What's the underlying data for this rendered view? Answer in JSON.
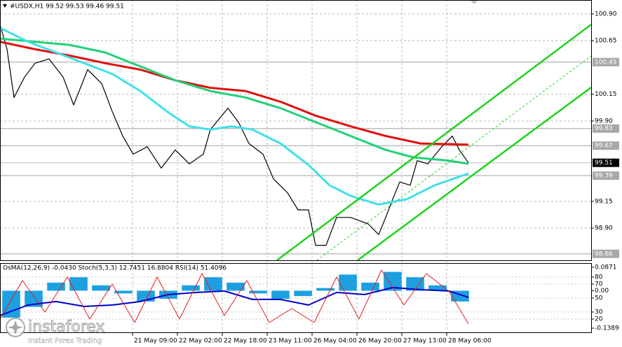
{
  "header": "#USDX,H1  99.52 99.53 99.46 99.51",
  "logo": {
    "name": "instaforex",
    "tagline": "Instant Forex Trading"
  },
  "chart_data": [
    {
      "type": "line",
      "xlim": [
        0,
        210.75
      ],
      "xticks": [
        {
          "value": 47.25,
          "label": "21 May 09:00"
        },
        {
          "value": 63.25,
          "label": "22 May 02:00"
        },
        {
          "value": 79.25,
          "label": "22 May 18:00"
        },
        {
          "value": 95.25,
          "label": "23 May 11:00"
        },
        {
          "value": 111.25,
          "label": "26 May 04:00"
        },
        {
          "value": 127.25,
          "label": "26 May 20:00"
        },
        {
          "value": 143.25,
          "label": "27 May 13:00"
        },
        {
          "value": 159.25,
          "label": "28 May 06:00"
        }
      ],
      "ylim": [
        98.6,
        101.03
      ],
      "yticks": [
        {
          "value": 100.9,
          "label": "100.90"
        },
        100.65,
        100.15,
        {
          "value": 99.9,
          "label": "99.90"
        },
        99.15,
        {
          "value": 98.9,
          "label": "98.90"
        }
      ],
      "levels": [
        100.45,
        99.83,
        99.67,
        99.39,
        98.66
      ],
      "current_price": 99.51,
      "grid": true,
      "series": [
        {
          "color": "#000000",
          "width": 1.2,
          "x": [
            0,
            2.5,
            5,
            8.75,
            12.5,
            17.5,
            22.5,
            26.25,
            31.25,
            36.25,
            40,
            43.75,
            47.5,
            52.5,
            57.5,
            62.5,
            67.5,
            72.5,
            75,
            81.25,
            85,
            88.75,
            93.75,
            97.5,
            102.5,
            106.25,
            110,
            112.5,
            116.25,
            120,
            125,
            131.25,
            135,
            137.5,
            140,
            142.5,
            146.25,
            148.75,
            152.5,
            157.5,
            161.25,
            163.75,
            167
          ],
          "values": [
            100.8,
            100.57,
            100.12,
            100.31,
            100.44,
            100.48,
            100.31,
            100.05,
            100.38,
            100.25,
            99.99,
            99.76,
            99.59,
            99.66,
            99.46,
            99.63,
            99.5,
            99.59,
            99.82,
            100.02,
            99.89,
            99.69,
            99.59,
            99.36,
            99.23,
            99.07,
            99.07,
            98.74,
            98.74,
            99.0,
            99.0,
            98.94,
            98.84,
            99.0,
            99.17,
            99.33,
            99.3,
            99.53,
            99.5,
            99.66,
            99.76,
            99.63,
            99.51
          ]
        },
        {
          "color": "#e01010",
          "width": 3,
          "x": [
            0,
            12.5,
            25,
            37.5,
            50,
            62.5,
            75,
            87.5,
            100,
            112.5,
            125,
            137.5,
            150,
            167
          ],
          "values": [
            100.64,
            100.57,
            100.51,
            100.44,
            100.38,
            100.28,
            100.21,
            100.18,
            100.08,
            99.95,
            99.85,
            99.76,
            99.69,
            99.68
          ]
        },
        {
          "color": "#22d07a",
          "width": 3,
          "x": [
            0,
            12.5,
            25,
            37.5,
            50,
            62.5,
            75,
            87.5,
            100,
            112.5,
            125,
            137.5,
            147.5,
            160,
            167
          ],
          "values": [
            100.67,
            100.64,
            100.61,
            100.54,
            100.41,
            100.28,
            100.18,
            100.12,
            100.02,
            99.89,
            99.76,
            99.63,
            99.56,
            99.53,
            99.5
          ]
        },
        {
          "color": "#40e0e8",
          "width": 3,
          "x": [
            0,
            10,
            20,
            30,
            40,
            50,
            60,
            67.5,
            75,
            82.5,
            90,
            100,
            110,
            117.5,
            125,
            135,
            145,
            155,
            167
          ],
          "values": [
            100.77,
            100.64,
            100.54,
            100.44,
            100.34,
            100.18,
            99.98,
            99.85,
            99.82,
            99.85,
            99.82,
            99.69,
            99.49,
            99.3,
            99.2,
            99.12,
            99.17,
            99.3,
            99.41
          ]
        }
      ]
    },
    {
      "type": "line",
      "title": "OsMA(12,26,9) -0.0430  Stoch(5,3,3) 12.7451 16.8804  RSI(14) 51.4096",
      "xlim": [
        0,
        210.75
      ],
      "ylim": [
        0,
        100
      ],
      "yticks": [
        80,
        70,
        50,
        30,
        20
      ],
      "y2lim": [
        -0.157,
        0.1027
      ],
      "y2ticks": [
        0.0871,
        {
          "value": 0,
          "label": "0.00"
        },
        -0.1389
      ],
      "series": [
        {
          "kind": "bar",
          "axis": "y2",
          "color": "#1ea0e0",
          "x": [
            4,
            12,
            20,
            28,
            36,
            44,
            52,
            60,
            68,
            76,
            84,
            92,
            100,
            108,
            116,
            124,
            132,
            140,
            148,
            156,
            164
          ],
          "values": [
            -0.1,
            -0.06,
            0.03,
            0.05,
            0.02,
            -0.01,
            -0.04,
            -0.03,
            0.02,
            0.05,
            0.03,
            -0.01,
            -0.03,
            -0.02,
            0.01,
            0.06,
            0.03,
            0.07,
            0.05,
            0.02,
            -0.04
          ]
        },
        {
          "kind": "line",
          "color": "#0000c8",
          "width": 2,
          "x": [
            0,
            10,
            20,
            30,
            40,
            50,
            60,
            70,
            80,
            90,
            100,
            110,
            120,
            130,
            140,
            150,
            160,
            167
          ],
          "values": [
            25,
            40,
            45,
            38,
            40,
            45,
            55,
            58,
            60,
            48,
            48,
            40,
            58,
            55,
            65,
            62,
            60,
            51
          ]
        },
        {
          "kind": "line",
          "color": "#e02020",
          "width": 1,
          "x": [
            0,
            8,
            16,
            24,
            32,
            40,
            48,
            56,
            64,
            72,
            80,
            88,
            96,
            104,
            112,
            120,
            128,
            136,
            144,
            152,
            160,
            167
          ],
          "values": [
            20,
            75,
            30,
            80,
            20,
            70,
            15,
            80,
            20,
            85,
            25,
            75,
            15,
            35,
            15,
            80,
            20,
            90,
            40,
            85,
            60,
            13
          ]
        }
      ]
    }
  ]
}
